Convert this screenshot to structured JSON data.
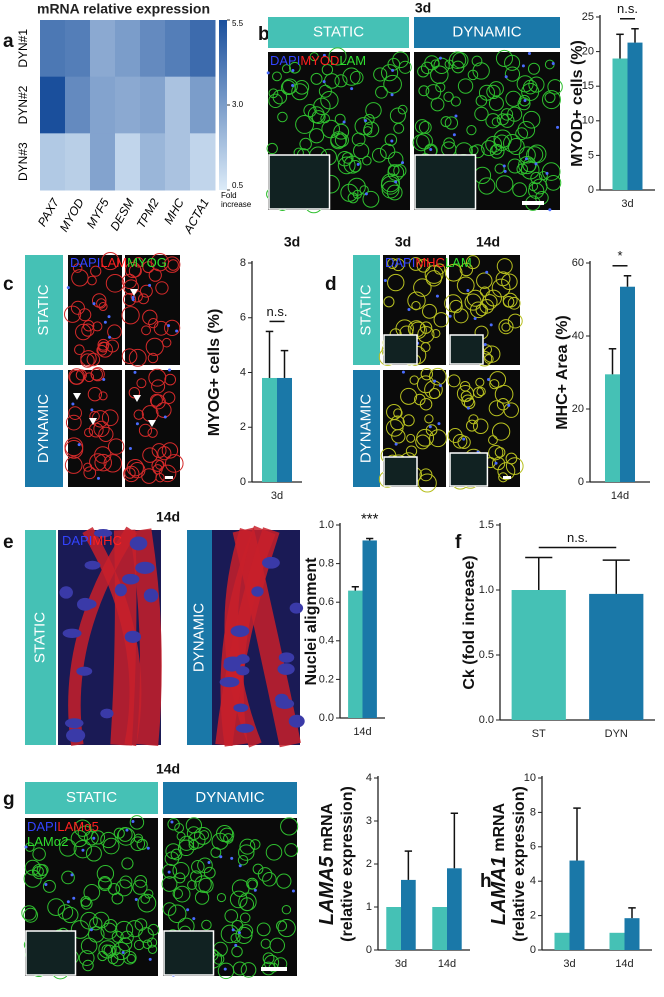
{
  "panel_letters": [
    "a",
    "b",
    "c",
    "d",
    "e",
    "f",
    "g",
    "h"
  ],
  "figure": {
    "b": {
      "timepoints": [
        "3d"
      ],
      "conditions": [
        "STATIC",
        "DYNAMIC"
      ],
      "colors": [
        "#45c1b5",
        "#1a78a8"
      ],
      "stains": [
        [
          {
            "text": "DAPI",
            "color": "#3344ff"
          },
          {
            "text": "MYOD",
            "color": "#ff2020"
          },
          {
            "text": "LAM",
            "color": "#30e030"
          }
        ]
      ]
    },
    "c": {
      "timepoints": [
        "3d"
      ],
      "conditions": [
        "STATIC",
        "DYNAMIC"
      ],
      "colors": [
        "#45c1b5",
        "#1a78a8"
      ],
      "stains": [
        [
          {
            "text": "DAPI",
            "color": "#3344ff"
          },
          {
            "text": "LAM",
            "color": "#ff2020"
          },
          {
            "text": "MYOG",
            "color": "#30e030"
          }
        ]
      ]
    },
    "d": {
      "timepoints": [
        "3d",
        "14d"
      ],
      "conditions": [
        "STATIC",
        "DYNAMIC"
      ],
      "colors": [
        "#45c1b5",
        "#1a78a8"
      ],
      "stains": [
        [
          {
            "text": "DAPI",
            "color": "#3344ff"
          },
          {
            "text": "MHC",
            "color": "#ff2020"
          },
          {
            "text": "LAM",
            "color": "#30e030"
          }
        ]
      ]
    },
    "e": {
      "timepoints": [
        "14d"
      ],
      "conditions": [
        "STATIC",
        "DYNAMIC"
      ],
      "colors": [
        "#45c1b5",
        "#1a78a8"
      ],
      "stains": [
        [
          {
            "text": "DAPI",
            "color": "#3344ff"
          },
          {
            "text": "MHC",
            "color": "#ff2020"
          }
        ]
      ]
    },
    "g": {
      "timepoints": [
        "14d"
      ],
      "conditions": [
        "STATIC",
        "DYNAMIC"
      ],
      "colors": [
        "#45c1b5",
        "#1a78a8"
      ],
      "stains": [
        [
          {
            "text": "DAPI",
            "color": "#3344ff"
          },
          {
            "text": "LAMα5",
            "color": "#ff2020"
          }
        ],
        [
          {
            "text": "LAMα2",
            "color": "#30e030"
          }
        ]
      ]
    }
  },
  "chart_data": [
    {
      "type": "heatmap",
      "title": "mRNA relative expression",
      "rows": [
        "DYN#1",
        "DYN#2",
        "DYN#3"
      ],
      "columns": [
        "PAX7",
        "MYOD",
        "MYF5",
        "DESM",
        "TPM2",
        "MHC",
        "ACTA1"
      ],
      "values": [
        [
          4.2,
          4.0,
          2.6,
          3.0,
          3.6,
          4.0,
          4.6
        ],
        [
          5.5,
          3.6,
          2.8,
          2.6,
          2.8,
          1.8,
          3.0
        ],
        [
          1.6,
          1.4,
          2.8,
          1.2,
          2.2,
          1.8,
          1.2
        ]
      ],
      "colorbar_lim": [
        0.5,
        5.5
      ],
      "colorbar_ticks": [
        0.5,
        {
          "value": 3,
          "label": "3.0"
        },
        5.5
      ],
      "colorbar_label": [
        "Fold",
        "increase"
      ],
      "colors": [
        "#dcebf8",
        "#1a4f9c"
      ]
    },
    {
      "type": "bar",
      "ylabel": "MYOD+ cells (%)",
      "categories": [
        "3d"
      ],
      "series": [
        {
          "color": "#45c1b5",
          "values": [
            19
          ],
          "errors": [
            3.5
          ]
        },
        {
          "color": "#1a78a8",
          "values": [
            21.3
          ],
          "errors": [
            2
          ]
        }
      ],
      "ylim": [
        0,
        25
      ],
      "yticks": [
        0,
        5,
        10,
        15,
        20,
        25
      ],
      "annotation": "n.s.",
      "annotation_line": true
    },
    {
      "type": "bar",
      "ylabel": "MYOG+ cells (%)",
      "categories": [
        "3d"
      ],
      "series": [
        {
          "color": "#45c1b5",
          "values": [
            3.8
          ],
          "errors": [
            1.7
          ]
        },
        {
          "color": "#1a78a8",
          "values": [
            3.8
          ],
          "errors": [
            1.0
          ]
        }
      ],
      "ylim": [
        0,
        8
      ],
      "yticks": [
        0,
        2,
        4,
        6,
        8
      ],
      "annotation": "n.s.",
      "annotation_line": true
    },
    {
      "type": "bar",
      "ylabel": "MHC+ Area (%)",
      "categories": [
        "14d"
      ],
      "series": [
        {
          "color": "#45c1b5",
          "values": [
            29.5
          ],
          "errors": [
            7
          ]
        },
        {
          "color": "#1a78a8",
          "values": [
            53.5
          ],
          "errors": [
            3
          ]
        }
      ],
      "ylim": [
        0,
        60
      ],
      "yticks": [
        0,
        20,
        40,
        60
      ],
      "annotation": "*",
      "annotation_line": true
    },
    {
      "type": "bar",
      "ylabel": "Nuclei alignment",
      "categories": [
        "14d"
      ],
      "series": [
        {
          "color": "#45c1b5",
          "values": [
            0.66
          ],
          "errors": [
            0.02
          ]
        },
        {
          "color": "#1a78a8",
          "values": [
            0.92
          ],
          "errors": [
            0.01
          ]
        }
      ],
      "ylim": [
        0,
        1
      ],
      "yticks": [
        {
          "value": 0,
          "label": "0.0"
        },
        0.2,
        0.4,
        0.6,
        0.8,
        {
          "value": 1,
          "label": "1.0"
        }
      ],
      "annotation": "***",
      "annotation_line": false
    },
    {
      "type": "bar",
      "ylabel": "Ck (fold increase)",
      "categories": [
        "ST",
        "DYN"
      ],
      "values": [
        1.0,
        0.97
      ],
      "errors": [
        0.25,
        0.26
      ],
      "colors": [
        "#45c1b5",
        "#1a78a8"
      ],
      "ylim": [
        0,
        1.5
      ],
      "yticks": [
        {
          "value": 0,
          "label": "0.0"
        },
        0.5,
        {
          "value": 1,
          "label": "1.0"
        },
        1.5
      ],
      "annotation": "n.s.",
      "annotation_line": true
    },
    {
      "type": "bar",
      "ylabel": {
        "gene": "LAMA5",
        "text": "mRNA",
        "line2": "(relative expression)"
      },
      "categories": [
        "3d",
        "14d"
      ],
      "series": [
        {
          "color": "#45c1b5",
          "values": [
            1,
            1
          ]
        },
        {
          "color": "#1a78a8",
          "values": [
            1.63,
            1.9
          ],
          "errors": [
            0.67,
            1.28
          ]
        }
      ],
      "ylim": [
        0,
        4
      ],
      "yticks": [
        0,
        1,
        2,
        3,
        4
      ]
    },
    {
      "type": "bar",
      "ylabel": {
        "gene": "LAMA1",
        "text": "mRNA",
        "line2": "(relative expression)"
      },
      "categories": [
        "3d",
        "14d"
      ],
      "series": [
        {
          "color": "#45c1b5",
          "values": [
            1,
            1
          ]
        },
        {
          "color": "#1a78a8",
          "values": [
            5.2,
            1.85
          ],
          "errors": [
            3.05,
            0.6
          ]
        }
      ],
      "ylim": [
        0,
        10
      ],
      "yticks": [
        0,
        2,
        4,
        6,
        8,
        10
      ]
    }
  ]
}
